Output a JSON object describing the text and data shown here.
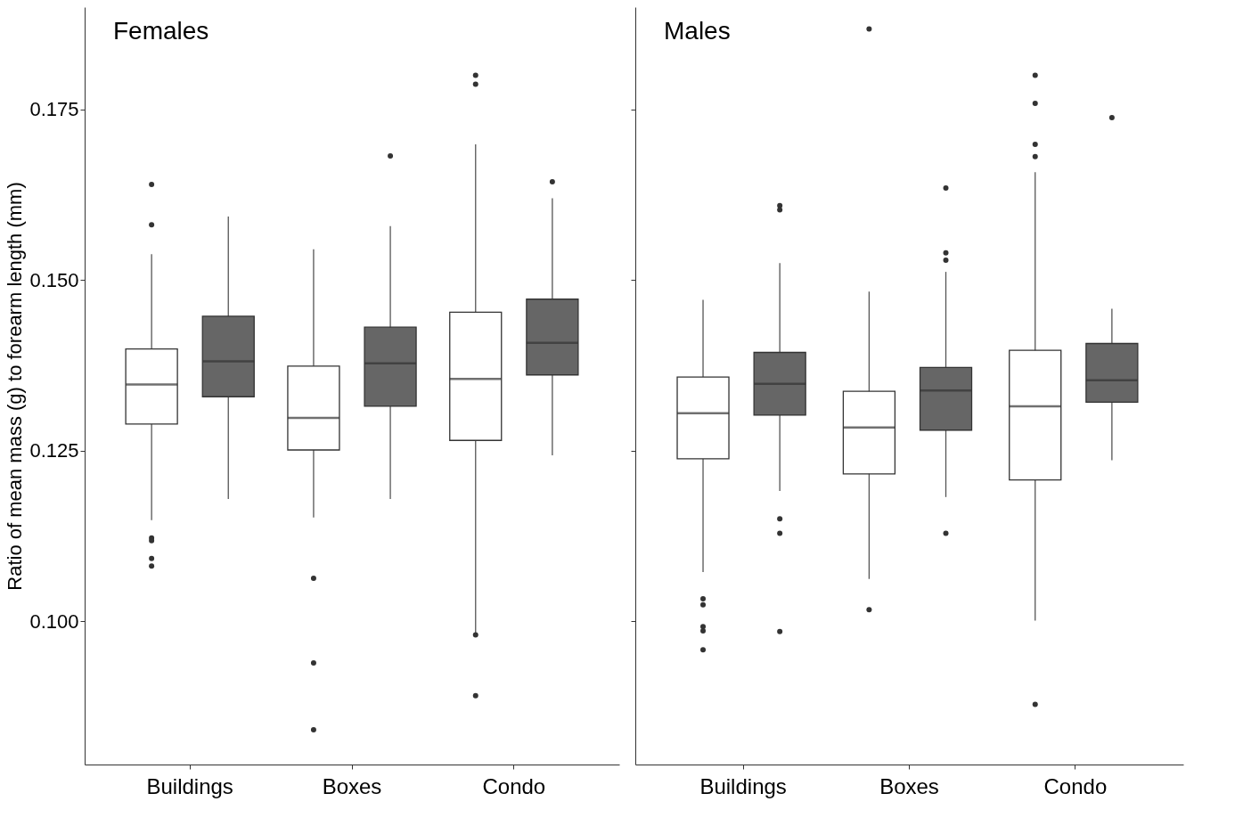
{
  "chart_data": [
    {
      "type": "box",
      "title": "Females",
      "ylabel": "Ratio of mean mass (g) to forearm length (mm)",
      "categories": [
        "Buildings",
        "Boxes",
        "Condo"
      ],
      "ylim": [
        0.079,
        0.19
      ],
      "yticks": [
        {
          "value": 0.1,
          "label": "0.100"
        },
        {
          "value": 0.125,
          "label": "0.125"
        },
        {
          "value": 0.15,
          "label": "0.150"
        },
        {
          "value": 0.175,
          "label": "0.175"
        }
      ],
      "grid": false,
      "series": [
        {
          "color": "#ffffff",
          "boxes": [
            {
              "low": 0.1148,
              "q1": 0.1289,
              "median": 0.1347,
              "q3": 0.1399,
              "high": 0.1538,
              "outliers": [
                0.164,
                0.1581,
                0.1122,
                0.1118,
                0.1092,
                0.1081
              ]
            },
            {
              "low": 0.1152,
              "q1": 0.1251,
              "median": 0.1298,
              "q3": 0.1374,
              "high": 0.1545,
              "outliers": [
                0.1063,
                0.0939,
                0.0841
              ]
            },
            {
              "low": 0.0982,
              "q1": 0.1265,
              "median": 0.1355,
              "q3": 0.1453,
              "high": 0.1699,
              "outliers": [
                0.18,
                0.1787,
                0.098,
                0.0891
              ]
            }
          ]
        },
        {
          "color": "#666666",
          "boxes": [
            {
              "low": 0.1179,
              "q1": 0.1329,
              "median": 0.1381,
              "q3": 0.1447,
              "high": 0.1593
            },
            {
              "low": 0.1179,
              "q1": 0.1315,
              "median": 0.1378,
              "q3": 0.1431,
              "high": 0.1579,
              "outliers": [
                0.1682
              ]
            },
            {
              "low": 0.1243,
              "q1": 0.1361,
              "median": 0.1408,
              "q3": 0.1472,
              "high": 0.162,
              "outliers": [
                0.1644
              ]
            }
          ]
        }
      ]
    },
    {
      "type": "box",
      "title": "Males",
      "categories": [
        "Buildings",
        "Boxes",
        "Condo"
      ],
      "ylim": [
        0.079,
        0.19
      ],
      "yticks": [
        {
          "value": 0.1,
          "label": null
        },
        {
          "value": 0.125,
          "label": null
        },
        {
          "value": 0.15,
          "label": null
        },
        {
          "value": 0.175,
          "label": null
        }
      ],
      "tick_labels": "x",
      "grid": false,
      "series": [
        {
          "color": "#ffffff",
          "boxes": [
            {
              "low": 0.1072,
              "q1": 0.1238,
              "median": 0.1305,
              "q3": 0.1358,
              "high": 0.1471,
              "outliers": [
                0.1033,
                0.1024,
                0.0992,
                0.0986,
                0.0958
              ]
            },
            {
              "low": 0.1062,
              "q1": 0.1216,
              "median": 0.1284,
              "q3": 0.1337,
              "high": 0.1483,
              "outliers": [
                0.1868,
                0.1017
              ]
            },
            {
              "low": 0.1001,
              "q1": 0.1207,
              "median": 0.1315,
              "q3": 0.1397,
              "high": 0.1658,
              "outliers": [
                0.18,
                0.1759,
                0.1699,
                0.1681,
                0.0878
              ]
            }
          ]
        },
        {
          "color": "#666666",
          "boxes": [
            {
              "low": 0.1191,
              "q1": 0.1302,
              "median": 0.1348,
              "q3": 0.1394,
              "high": 0.1525,
              "outliers": [
                0.1609,
                0.1603,
                0.115,
                0.1129,
                0.0985
              ]
            },
            {
              "low": 0.1182,
              "q1": 0.128,
              "median": 0.1338,
              "q3": 0.1372,
              "high": 0.1512,
              "outliers": [
                0.1635,
                0.154,
                0.1529,
                0.1129
              ]
            },
            {
              "low": 0.1236,
              "q1": 0.1321,
              "median": 0.1353,
              "q3": 0.1407,
              "high": 0.1458,
              "outliers": [
                0.1738
              ]
            }
          ]
        }
      ]
    }
  ]
}
